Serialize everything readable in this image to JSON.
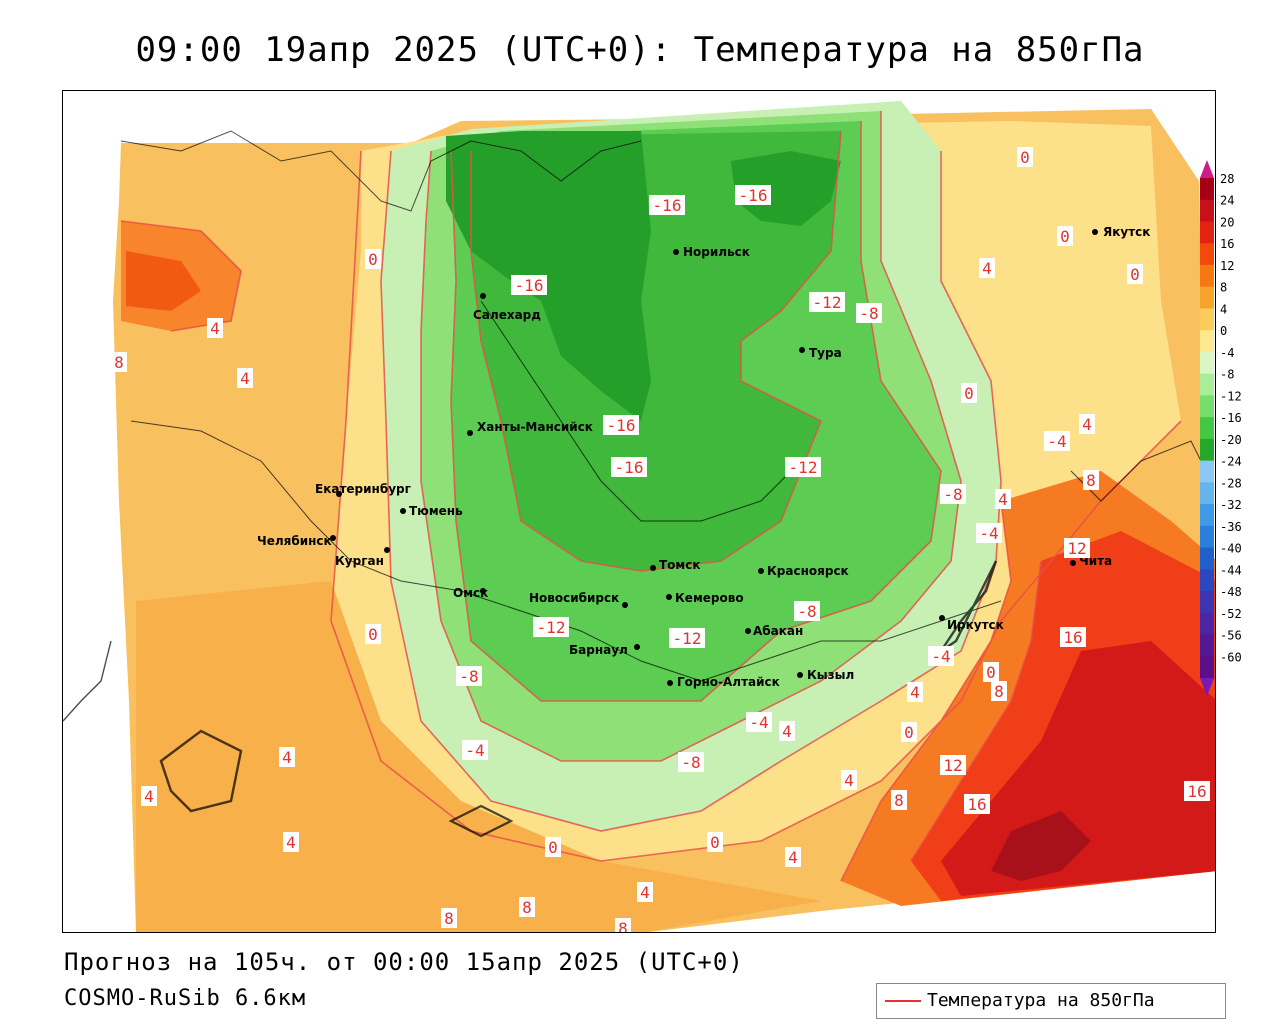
{
  "header": {
    "title": "09:00 19апр 2025 (UTC+0): Температура на 850гПа"
  },
  "footer": {
    "forecast": "Прогноз на 105ч. от 00:00 15апр 2025 (UTC+0)",
    "model": "COSMO-RuSib 6.6км"
  },
  "legend": {
    "label": "Температура на 850гПа",
    "line_color": "#e0342f"
  },
  "colorbar": {
    "ticks": [
      "28",
      "24",
      "20",
      "16",
      "12",
      "8",
      "4",
      "0",
      "-4",
      "-8",
      "-12",
      "-16",
      "-20",
      "-24",
      "-28",
      "-32",
      "-36",
      "-40",
      "-44",
      "-48",
      "-52",
      "-56",
      "-60"
    ],
    "colors": [
      "#a50018",
      "#c8101a",
      "#e42212",
      "#f24a0a",
      "#f67812",
      "#f8a42a",
      "#fbcc5c",
      "#fde88e",
      "#d9f7c4",
      "#a8ee98",
      "#74df6c",
      "#44c844",
      "#24a82a",
      "#8cc8f4",
      "#64b4ee",
      "#3e9ae6",
      "#2a7edc",
      "#2060cc",
      "#2c48c0",
      "#3c34b0",
      "#4c24a4",
      "#541894",
      "#5a1088"
    ],
    "top_arrow_color": "#d01c8b",
    "bottom_arrow_color": "#7a18b8"
  },
  "map": {
    "cities": [
      {
        "name": "Якутск"
      },
      {
        "name": "Норильск"
      },
      {
        "name": "Салехард"
      },
      {
        "name": "Тура"
      },
      {
        "name": "Ханты-Мансийск"
      },
      {
        "name": "Екатеринбург"
      },
      {
        "name": "Тюмень"
      },
      {
        "name": "Челябинск"
      },
      {
        "name": "Курган"
      },
      {
        "name": "Омск"
      },
      {
        "name": "Новосибирск"
      },
      {
        "name": "Томск"
      },
      {
        "name": "Кемерово"
      },
      {
        "name": "Красноярск"
      },
      {
        "name": "Барнаул"
      },
      {
        "name": "Абакан"
      },
      {
        "name": "Горно-Алтайск"
      },
      {
        "name": "Кызыл"
      },
      {
        "name": "Иркутск"
      },
      {
        "name": "Чита"
      }
    ],
    "isotherm_labels": [
      {
        "text": "-16"
      },
      {
        "text": "-16"
      },
      {
        "text": "-16"
      },
      {
        "text": "-16"
      },
      {
        "text": "-16"
      },
      {
        "text": "-12"
      },
      {
        "text": "-12"
      },
      {
        "text": "-12"
      },
      {
        "text": "-12"
      },
      {
        "text": "-8"
      },
      {
        "text": "-8"
      },
      {
        "text": "-8"
      },
      {
        "text": "-8"
      },
      {
        "text": "-8"
      },
      {
        "text": "-4"
      },
      {
        "text": "-4"
      },
      {
        "text": "-4"
      },
      {
        "text": "-4"
      },
      {
        "text": "-4"
      },
      {
        "text": "0"
      },
      {
        "text": "0"
      },
      {
        "text": "0"
      },
      {
        "text": "0"
      },
      {
        "text": "0"
      },
      {
        "text": "0"
      },
      {
        "text": "0"
      },
      {
        "text": "0"
      },
      {
        "text": "0"
      },
      {
        "text": "0"
      },
      {
        "text": "4"
      },
      {
        "text": "4"
      },
      {
        "text": "4"
      },
      {
        "text": "4"
      },
      {
        "text": "4"
      },
      {
        "text": "4"
      },
      {
        "text": "4"
      },
      {
        "text": "4"
      },
      {
        "text": "4"
      },
      {
        "text": "4"
      },
      {
        "text": "4"
      },
      {
        "text": "4"
      },
      {
        "text": "4"
      },
      {
        "text": "8"
      },
      {
        "text": "8"
      },
      {
        "text": "8"
      },
      {
        "text": "8"
      },
      {
        "text": "8"
      },
      {
        "text": "8"
      },
      {
        "text": "8"
      },
      {
        "text": "12"
      },
      {
        "text": "12"
      },
      {
        "text": "16"
      },
      {
        "text": "16"
      },
      {
        "text": "16"
      }
    ]
  }
}
